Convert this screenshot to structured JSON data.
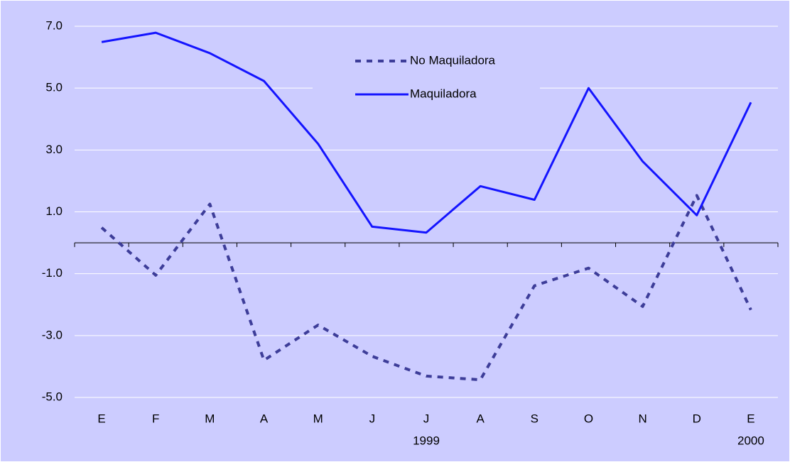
{
  "chart_data": {
    "type": "line",
    "categories": [
      "E",
      "F",
      "M",
      "A",
      "M",
      "J",
      "J",
      "A",
      "S",
      "O",
      "N",
      "D",
      "E"
    ],
    "year_labels": [
      null,
      null,
      null,
      null,
      null,
      null,
      "1999",
      null,
      null,
      null,
      null,
      null,
      "2000"
    ],
    "series": [
      {
        "name": "No Maquiladora",
        "color": "#3d3d99",
        "dashed": true,
        "values": [
          0.49,
          -1.05,
          1.25,
          -3.8,
          -2.66,
          -3.67,
          -4.31,
          -4.43,
          -1.39,
          -0.82,
          -2.06,
          1.53,
          -2.17
        ]
      },
      {
        "name": "Maquiladora",
        "color": "#1414ff",
        "dashed": false,
        "values": [
          6.49,
          6.79,
          6.13,
          5.23,
          3.2,
          0.52,
          0.33,
          1.83,
          1.39,
          5.0,
          2.63,
          0.89,
          4.54
        ]
      }
    ],
    "ylim": [
      -5,
      7
    ],
    "yticks": [
      {
        "value": 7,
        "label": "7.0"
      },
      {
        "value": 5,
        "label": "5.0"
      },
      {
        "value": 3,
        "label": "3.0"
      },
      {
        "value": 1,
        "label": "1.0"
      },
      {
        "value": -1,
        "label": "-1.0"
      },
      {
        "value": -3,
        "label": "-3.0"
      },
      {
        "value": -5,
        "label": "-5.0"
      }
    ],
    "grid": true,
    "background": "#ccccff"
  }
}
